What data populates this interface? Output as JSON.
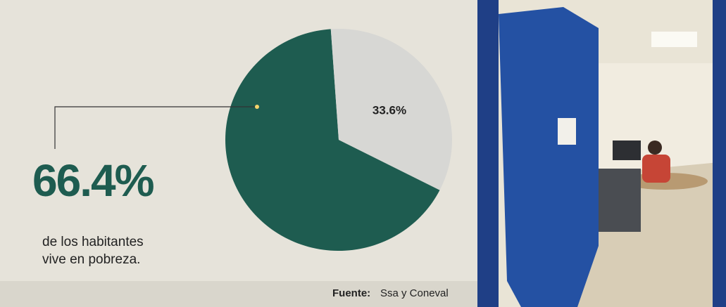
{
  "chart_data": {
    "type": "pie",
    "values": [
      66.4,
      33.6
    ],
    "value_labels": [
      "66.4%",
      "33.6%"
    ],
    "colors": [
      "#1e5c50",
      "#d7d7d4"
    ],
    "caption_lines": [
      "de los habitantes",
      "vive en pobreza."
    ],
    "source_label": "Fuente:",
    "source": "Ssa y Coneval"
  }
}
